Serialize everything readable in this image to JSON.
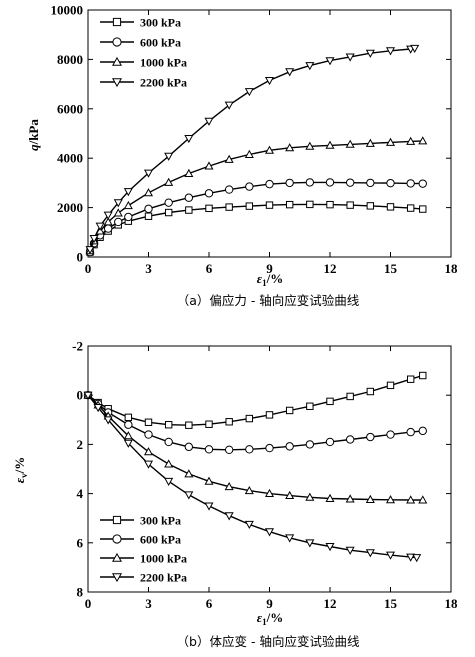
{
  "chart_data": [
    {
      "type": "line",
      "caption": "（a）偏应力 - 轴向应变试验曲线",
      "xlabel_sym": "ε",
      "xlabel_sub": "1",
      "xlabel_unit": "/%",
      "ylabel_sym": "q",
      "ylabel_unit": "/kPa",
      "xlim": [
        0,
        18
      ],
      "ylim": [
        0,
        10000
      ],
      "xticks": [
        0,
        3,
        6,
        9,
        12,
        15,
        18
      ],
      "yticks": [
        0,
        2000,
        4000,
        6000,
        8000,
        10000
      ],
      "legend_position": "top-left",
      "series": [
        {
          "name": "300 kPa",
          "marker": "square",
          "x": [
            0.1,
            0.3,
            0.6,
            1.0,
            1.5,
            2.0,
            3.0,
            4.0,
            5.0,
            6.0,
            7.0,
            8.0,
            9.0,
            10.0,
            11.0,
            12.0,
            13.0,
            14.0,
            15.0,
            16.0,
            16.6
          ],
          "y": [
            200,
            500,
            800,
            1050,
            1300,
            1450,
            1650,
            1800,
            1900,
            1970,
            2020,
            2060,
            2100,
            2120,
            2130,
            2120,
            2100,
            2070,
            2030,
            1980,
            1940
          ]
        },
        {
          "name": "600 kPa",
          "marker": "circle",
          "x": [
            0.1,
            0.3,
            0.6,
            1.0,
            1.5,
            2.0,
            3.0,
            4.0,
            5.0,
            6.0,
            7.0,
            8.0,
            9.0,
            10.0,
            11.0,
            12.0,
            13.0,
            14.0,
            15.0,
            16.0,
            16.6
          ],
          "y": [
            200,
            550,
            880,
            1150,
            1420,
            1620,
            1950,
            2200,
            2400,
            2580,
            2730,
            2850,
            2950,
            3000,
            3020,
            3020,
            3010,
            3000,
            2990,
            2980,
            2970
          ]
        },
        {
          "name": "1000 kPa",
          "marker": "triangle-up",
          "x": [
            0.1,
            0.3,
            0.6,
            1.0,
            1.5,
            2.0,
            3.0,
            4.0,
            5.0,
            6.0,
            7.0,
            8.0,
            9.0,
            10.0,
            11.0,
            12.0,
            13.0,
            14.0,
            15.0,
            16.0,
            16.6
          ],
          "y": [
            250,
            650,
            1050,
            1420,
            1780,
            2080,
            2600,
            3020,
            3380,
            3680,
            3950,
            4150,
            4320,
            4420,
            4480,
            4520,
            4560,
            4600,
            4640,
            4680,
            4700
          ]
        },
        {
          "name": "2200 kPa",
          "marker": "triangle-down",
          "x": [
            0.1,
            0.3,
            0.6,
            1.0,
            1.5,
            2.0,
            3.0,
            4.0,
            5.0,
            6.0,
            7.0,
            8.0,
            9.0,
            10.0,
            11.0,
            12.0,
            13.0,
            14.0,
            15.0,
            16.0,
            16.2
          ],
          "y": [
            300,
            750,
            1250,
            1700,
            2200,
            2650,
            3400,
            4080,
            4800,
            5500,
            6150,
            6700,
            7150,
            7500,
            7750,
            7950,
            8100,
            8250,
            8350,
            8420,
            8450
          ]
        }
      ]
    },
    {
      "type": "line",
      "caption": "（b）体应变 - 轴向应变试验曲线",
      "xlabel_sym": "ε",
      "xlabel_sub": "1",
      "xlabel_unit": "/%",
      "ylabel_sym": "ε",
      "ylabel_sub": "v",
      "ylabel_unit": "/%",
      "xlim": [
        0,
        18
      ],
      "ylim": [
        -2,
        8
      ],
      "y_inverted": true,
      "xticks": [
        0,
        3,
        6,
        9,
        12,
        15,
        18
      ],
      "yticks": [
        -2,
        0,
        2,
        4,
        6,
        8
      ],
      "legend_position": "bottom-left",
      "series": [
        {
          "name": "300 kPa",
          "marker": "square",
          "x": [
            0,
            0.5,
            1.0,
            2.0,
            3.0,
            4.0,
            5.0,
            6.0,
            7.0,
            8.0,
            9.0,
            10.0,
            11.0,
            12.0,
            13.0,
            14.0,
            15.0,
            16.0,
            16.6
          ],
          "y": [
            0,
            0.3,
            0.55,
            0.9,
            1.1,
            1.2,
            1.22,
            1.18,
            1.08,
            0.95,
            0.8,
            0.62,
            0.45,
            0.25,
            0.05,
            -0.15,
            -0.4,
            -0.65,
            -0.8
          ]
        },
        {
          "name": "600 kPa",
          "marker": "circle",
          "x": [
            0,
            0.5,
            1.0,
            2.0,
            3.0,
            4.0,
            5.0,
            6.0,
            7.0,
            8.0,
            9.0,
            10.0,
            11.0,
            12.0,
            13.0,
            14.0,
            15.0,
            16.0,
            16.6
          ],
          "y": [
            0,
            0.35,
            0.7,
            1.2,
            1.6,
            1.9,
            2.1,
            2.2,
            2.22,
            2.2,
            2.15,
            2.08,
            2.0,
            1.9,
            1.8,
            1.7,
            1.6,
            1.5,
            1.45
          ]
        },
        {
          "name": "1000 kPa",
          "marker": "triangle-up",
          "x": [
            0,
            0.5,
            1.0,
            2.0,
            3.0,
            4.0,
            5.0,
            6.0,
            7.0,
            8.0,
            9.0,
            10.0,
            11.0,
            12.0,
            13.0,
            14.0,
            15.0,
            16.0,
            16.6
          ],
          "y": [
            0,
            0.4,
            0.85,
            1.65,
            2.3,
            2.8,
            3.2,
            3.5,
            3.72,
            3.88,
            4.0,
            4.08,
            4.15,
            4.2,
            4.22,
            4.24,
            4.25,
            4.26,
            4.26
          ]
        },
        {
          "name": "2200 kPa",
          "marker": "triangle-down",
          "x": [
            0,
            0.5,
            1.0,
            2.0,
            3.0,
            4.0,
            5.0,
            6.0,
            7.0,
            8.0,
            9.0,
            10.0,
            11.0,
            12.0,
            13.0,
            14.0,
            15.0,
            16.0,
            16.3
          ],
          "y": [
            0,
            0.5,
            1.0,
            1.95,
            2.8,
            3.5,
            4.05,
            4.5,
            4.9,
            5.25,
            5.55,
            5.8,
            6.0,
            6.15,
            6.3,
            6.4,
            6.5,
            6.58,
            6.6
          ]
        }
      ]
    }
  ]
}
